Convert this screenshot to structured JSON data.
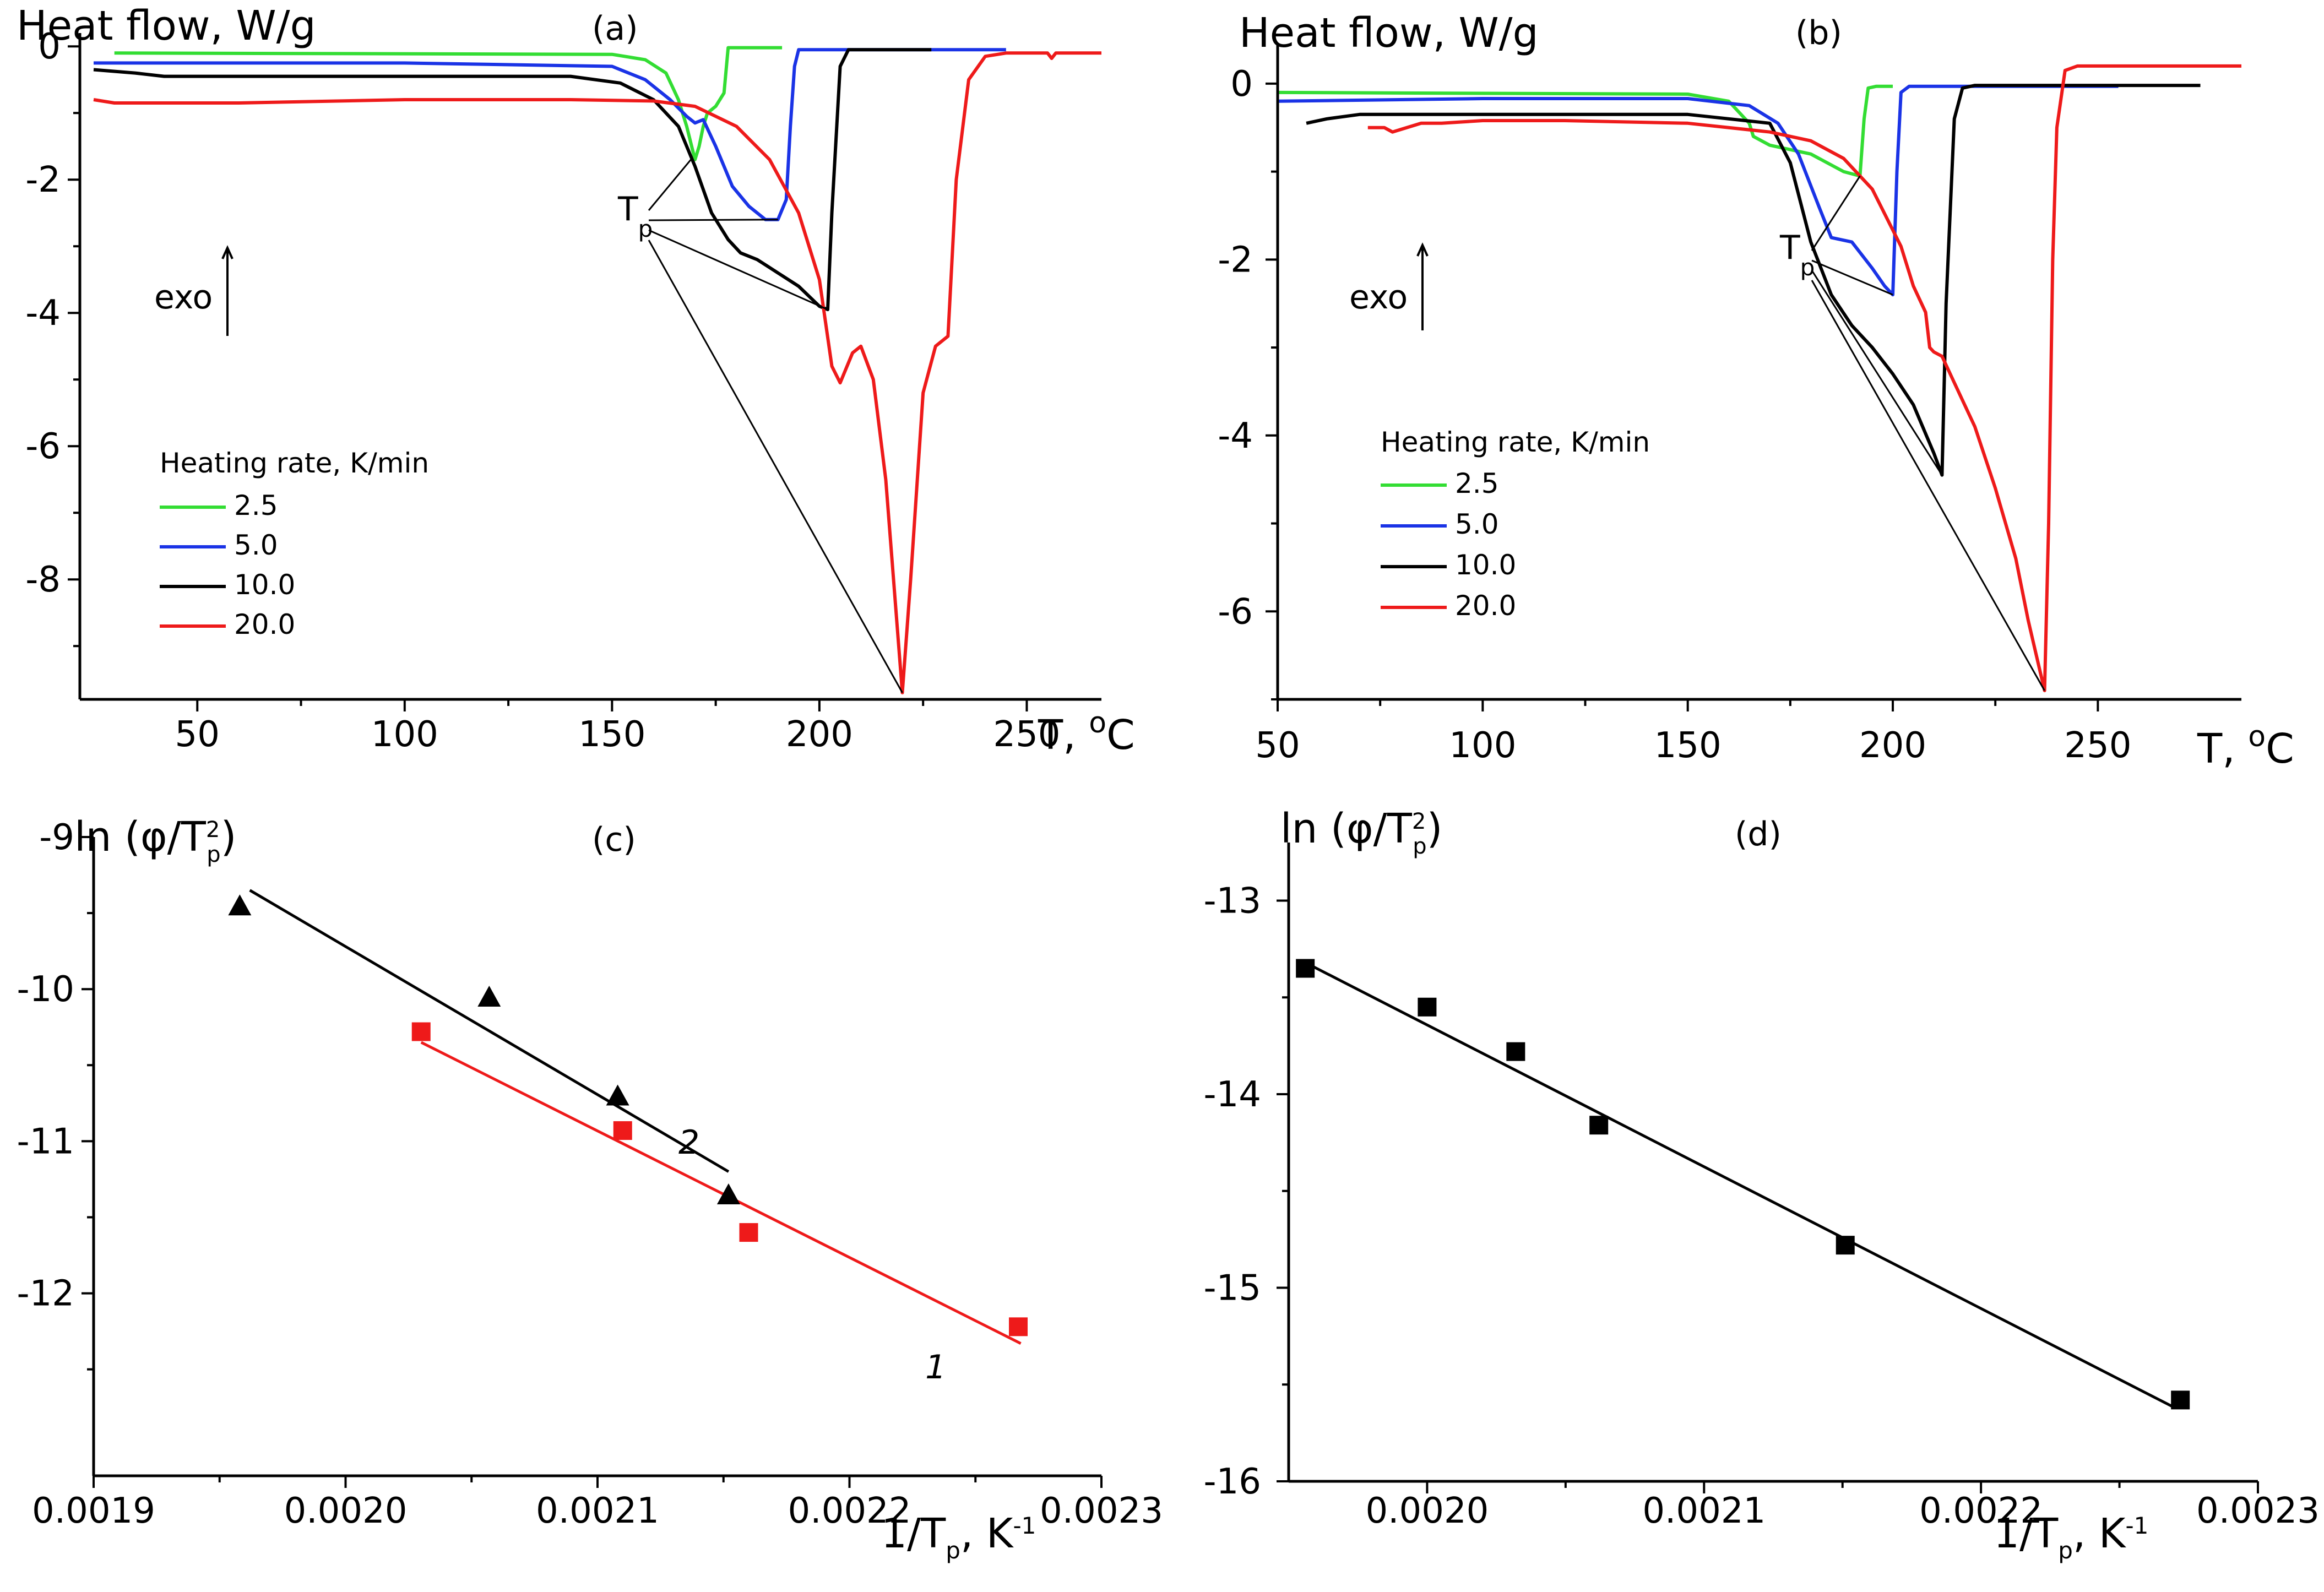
{
  "colors": {
    "green": "#33dd33",
    "blue": "#1a33e6",
    "black": "#000000",
    "red": "#ee1a1a"
  },
  "chart_data": [
    {
      "type": "line",
      "panel_label": "(a)",
      "ylabel": "Heat flow, W/g",
      "xlabel_prefix": "T, ",
      "xlabel_unit_sup": "o",
      "xlabel_unit": "C",
      "xlim": [
        25,
        268
      ],
      "ylim": [
        -9.8,
        0.2
      ],
      "xticks": [
        50,
        100,
        150,
        200,
        250
      ],
      "xtick_labels": [
        "50",
        "100",
        "150",
        "200",
        "250"
      ],
      "yticks": [
        0,
        -2,
        -4,
        -6,
        -8
      ],
      "ytick_labels": [
        "0",
        "-2",
        "-4",
        "-6",
        "-8"
      ],
      "exo_label": "exo",
      "tp_label_main": "T",
      "tp_label_sub": "p",
      "legend_title": "Heating rate, K/min",
      "series": [
        {
          "name": "2.5",
          "color": "green",
          "x": [
            30,
            150,
            158,
            163,
            166,
            168,
            170,
            171,
            172,
            173,
            175,
            177,
            178,
            182,
            191
          ],
          "y": [
            -0.1,
            -0.12,
            -0.2,
            -0.4,
            -0.8,
            -1.2,
            -1.7,
            -1.5,
            -1.2,
            -1.0,
            -0.9,
            -0.7,
            -0.02,
            -0.02,
            -0.02
          ]
        },
        {
          "name": "5.0",
          "color": "blue",
          "x": [
            25,
            100,
            150,
            158,
            164,
            168,
            170,
            172,
            175,
            179,
            183,
            187,
            190,
            192,
            193,
            194,
            195,
            196,
            245
          ],
          "y": [
            -0.25,
            -0.25,
            -0.3,
            -0.5,
            -0.8,
            -1.05,
            -1.15,
            -1.1,
            -1.5,
            -2.1,
            -2.4,
            -2.6,
            -2.6,
            -2.3,
            -1.2,
            -0.3,
            -0.05,
            -0.05,
            -0.05
          ]
        },
        {
          "name": "10.0",
          "color": "black",
          "x": [
            25,
            35,
            42,
            60,
            140,
            152,
            160,
            166,
            170,
            174,
            178,
            181,
            185,
            190,
            195,
            200,
            202,
            203,
            205,
            207,
            227
          ],
          "y": [
            -0.35,
            -0.4,
            -0.45,
            -0.45,
            -0.45,
            -0.55,
            -0.8,
            -1.2,
            -1.8,
            -2.5,
            -2.9,
            -3.1,
            -3.2,
            -3.4,
            -3.6,
            -3.9,
            -3.95,
            -2.5,
            -0.3,
            -0.05,
            -0.05
          ]
        },
        {
          "name": "20.0",
          "color": "red",
          "x": [
            25,
            30,
            40,
            60,
            100,
            140,
            160,
            170,
            180,
            188,
            195,
            200,
            203,
            205,
            208,
            210,
            213,
            216,
            220,
            222,
            225,
            228,
            231,
            233,
            236,
            240,
            245,
            255,
            256,
            257,
            268
          ],
          "y": [
            -0.8,
            -0.85,
            -0.85,
            -0.85,
            -0.8,
            -0.8,
            -0.82,
            -0.9,
            -1.2,
            -1.7,
            -2.5,
            -3.5,
            -4.8,
            -5.05,
            -4.6,
            -4.5,
            -5.0,
            -6.5,
            -9.7,
            -8.0,
            -5.2,
            -4.5,
            -4.35,
            -2.0,
            -0.5,
            -0.15,
            -0.1,
            -0.1,
            -0.18,
            -0.1,
            -0.1
          ]
        }
      ],
      "tp_points": [
        [
          169,
          -1.7
        ],
        [
          190,
          -2.6
        ],
        [
          202,
          -3.95
        ],
        [
          220,
          -9.7
        ]
      ]
    },
    {
      "type": "line",
      "panel_label": "(b)",
      "ylabel": "Heat flow, W/g",
      "xlabel_prefix": "T, ",
      "xlabel_unit_sup": "o",
      "xlabel_unit": "C",
      "xlim": [
        50,
        285
      ],
      "ylim": [
        -7,
        0.45
      ],
      "xticks": [
        50,
        100,
        150,
        200,
        250
      ],
      "xtick_labels": [
        "50",
        "100",
        "150",
        "200",
        "250"
      ],
      "yticks": [
        0,
        -2,
        -4,
        -6
      ],
      "ytick_labels": [
        "0",
        "-2",
        "-4",
        "-6"
      ],
      "exo_label": "exo",
      "tp_label_main": "T",
      "tp_label_sub": "p",
      "legend_title": "Heating rate, K/min",
      "series": [
        {
          "name": "2.5",
          "color": "green",
          "x": [
            50,
            150,
            160,
            165,
            166,
            170,
            180,
            188,
            192,
            193,
            194,
            196,
            200
          ],
          "y": [
            -0.1,
            -0.12,
            -0.2,
            -0.45,
            -0.6,
            -0.7,
            -0.8,
            -1.0,
            -1.05,
            -0.4,
            -0.05,
            -0.03,
            -0.03
          ]
        },
        {
          "name": "5.0",
          "color": "blue",
          "x": [
            50,
            100,
            150,
            165,
            172,
            177,
            182,
            185,
            190,
            195,
            198,
            200,
            201,
            202,
            204,
            206,
            255
          ],
          "y": [
            -0.2,
            -0.17,
            -0.17,
            -0.25,
            -0.45,
            -0.8,
            -1.4,
            -1.75,
            -1.8,
            -2.1,
            -2.3,
            -2.4,
            -1.0,
            -0.1,
            -0.03,
            -0.03,
            -0.03
          ]
        },
        {
          "name": "10.0",
          "color": "black",
          "x": [
            57,
            62,
            70,
            100,
            150,
            170,
            175,
            180,
            185,
            190,
            195,
            200,
            205,
            210,
            212,
            213,
            215,
            217,
            220,
            275
          ],
          "y": [
            -0.45,
            -0.4,
            -0.35,
            -0.35,
            -0.35,
            -0.45,
            -0.9,
            -1.8,
            -2.4,
            -2.75,
            -3.0,
            -3.3,
            -3.65,
            -4.2,
            -4.45,
            -2.5,
            -0.4,
            -0.05,
            -0.02,
            -0.02
          ]
        },
        {
          "name": "20.0",
          "color": "red",
          "x": [
            72,
            76,
            78,
            85,
            90,
            100,
            120,
            150,
            170,
            180,
            188,
            195,
            202,
            205,
            208,
            209,
            210,
            212,
            215,
            220,
            225,
            230,
            233,
            236,
            237,
            238,
            239,
            240,
            242,
            245,
            250,
            285
          ],
          "y": [
            -0.5,
            -0.5,
            -0.55,
            -0.45,
            -0.45,
            -0.42,
            -0.42,
            -0.45,
            -0.55,
            -0.65,
            -0.85,
            -1.2,
            -1.85,
            -2.3,
            -2.6,
            -3.0,
            -3.05,
            -3.1,
            -3.4,
            -3.9,
            -4.6,
            -5.4,
            -6.1,
            -6.7,
            -6.9,
            -5.0,
            -2.0,
            -0.5,
            0.15,
            0.2,
            0.2,
            0.2
          ]
        }
      ],
      "tp_points": [
        [
          192,
          -1.05
        ],
        [
          200,
          -2.4
        ],
        [
          212,
          -4.45
        ],
        [
          237,
          -6.9
        ]
      ]
    },
    {
      "type": "scatter",
      "panel_label": "(c)",
      "ylabel_prefix": "ln (φ/T",
      "ylabel_sup": "2",
      "ylabel_sub": "p",
      "ylabel_suffix": ")",
      "xlabel_prefix": "1/T",
      "xlabel_sub": "p",
      "xlabel_mid": ", K",
      "xlabel_sup": "-1",
      "xlim": [
        0.0019,
        0.0023
      ],
      "ylim": [
        -13.2,
        -9.0
      ],
      "xticks": [
        0.0019,
        0.002,
        0.0021,
        0.0022,
        0.0023
      ],
      "xtick_labels": [
        "0.0019",
        "0.0020",
        "0.0021",
        "0.0022",
        "0.0023"
      ],
      "yticks": [
        -9,
        -10,
        -11,
        -12
      ],
      "ytick_labels": [
        "-9",
        "-10",
        "-11",
        "-12"
      ],
      "series": [
        {
          "name": "1",
          "color": "red",
          "marker": "square",
          "x": [
            0.00203,
            0.00211,
            0.00216,
            0.002267
          ],
          "y": [
            -10.28,
            -10.93,
            -11.6,
            -12.22
          ],
          "fit": [
            [
              0.00203,
              -10.35
            ],
            [
              0.002268,
              -12.33
            ]
          ]
        },
        {
          "name": "2",
          "color": "black",
          "marker": "triangle",
          "x": [
            0.001958,
            0.002057,
            0.002108,
            0.002152
          ],
          "y": [
            -9.45,
            -10.05,
            -10.7,
            -11.35
          ],
          "fit": [
            [
              0.001962,
              -9.35
            ],
            [
              0.002152,
              -11.2
            ]
          ]
        }
      ]
    },
    {
      "type": "scatter",
      "panel_label": "(d)",
      "ylabel_prefix": "ln (φ/T",
      "ylabel_sup": "2",
      "ylabel_sub": "p",
      "ylabel_suffix": ")",
      "xlabel_prefix": "1/T",
      "xlabel_sub": "p",
      "xlabel_mid": ", K",
      "xlabel_sup": "-1",
      "xlim": [
        0.00195,
        0.0023
      ],
      "ylim": [
        -16.0,
        -12.7
      ],
      "xticks": [
        0.002,
        0.0021,
        0.0022,
        0.0023
      ],
      "xtick_labels": [
        "0.0020",
        "0.0021",
        "0.0022",
        "0.0023"
      ],
      "yticks": [
        -13,
        -14,
        -15,
        -16
      ],
      "ytick_labels": [
        "-13",
        "-14",
        "-15",
        "-16"
      ],
      "series": [
        {
          "name": "",
          "color": "black",
          "marker": "square",
          "x": [
            0.001956,
            0.002,
            0.002032,
            0.002062,
            0.002151,
            0.002272
          ],
          "y": [
            -13.35,
            -13.55,
            -13.78,
            -14.16,
            -14.78,
            -15.58
          ],
          "fit": [
            [
              0.001956,
              -13.32
            ],
            [
              0.00227,
              -15.62
            ]
          ]
        }
      ]
    }
  ]
}
